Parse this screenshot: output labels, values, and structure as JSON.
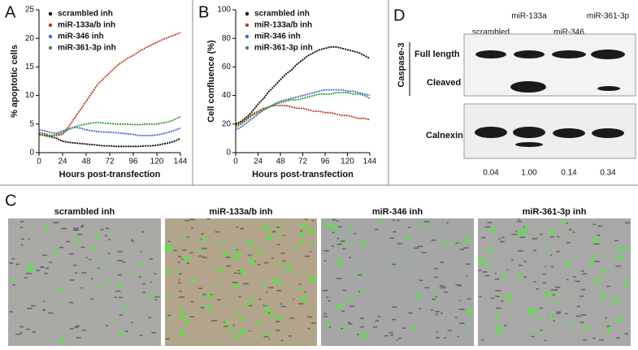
{
  "chart_data": [
    {
      "type": "line",
      "panel_label": "A",
      "ylabel": "% apoptotic cells",
      "xlabel": "Hours post-transfection",
      "x": [
        0,
        6,
        12,
        18,
        24,
        30,
        36,
        42,
        48,
        54,
        60,
        66,
        72,
        78,
        84,
        90,
        96,
        102,
        108,
        114,
        120,
        126,
        132,
        138,
        144
      ],
      "xlim": [
        0,
        144
      ],
      "xticks": [
        0,
        24,
        48,
        72,
        96,
        120,
        144
      ],
      "ylim": [
        0,
        25
      ],
      "yticks": [
        0,
        5,
        10,
        15,
        20,
        25
      ],
      "legend": "upper left",
      "series": [
        {
          "name": "scrambled inh",
          "color": "#000000",
          "values": [
            3.2,
            3.0,
            2.8,
            2.5,
            2.0,
            1.8,
            1.7,
            1.6,
            1.5,
            1.4,
            1.3,
            1.2,
            1.2,
            1.1,
            1.1,
            1.1,
            1.1,
            1.1,
            1.2,
            1.2,
            1.3,
            1.5,
            1.7,
            2.0,
            2.5
          ]
        },
        {
          "name": "miR-133a/b inh",
          "color": "#c8321e",
          "values": [
            3.5,
            3.3,
            3.0,
            3.0,
            3.2,
            4.5,
            6.0,
            7.5,
            9.0,
            10.5,
            12.0,
            13.0,
            14.0,
            15.0,
            15.8,
            16.5,
            17.0,
            17.7,
            18.3,
            18.8,
            19.3,
            19.8,
            20.2,
            20.6,
            21.0
          ]
        },
        {
          "name": "miR-346 inh",
          "color": "#4a5fd8",
          "values": [
            4.0,
            3.8,
            3.5,
            3.4,
            3.8,
            4.2,
            4.4,
            4.3,
            4.0,
            3.8,
            3.7,
            3.6,
            3.6,
            3.5,
            3.4,
            3.3,
            3.2,
            3.0,
            3.0,
            3.0,
            3.1,
            3.3,
            3.6,
            3.9,
            4.3
          ]
        },
        {
          "name": "miR-361-3p inh",
          "color": "#2e9e2e",
          "values": [
            3.0,
            3.2,
            3.0,
            3.2,
            3.5,
            4.0,
            4.5,
            4.8,
            5.0,
            5.2,
            5.3,
            5.2,
            5.1,
            5.0,
            5.0,
            5.0,
            4.9,
            4.9,
            5.0,
            5.0,
            5.0,
            5.2,
            5.4,
            5.8,
            6.3
          ]
        }
      ]
    },
    {
      "type": "line",
      "panel_label": "B",
      "ylabel": "Cell confluence (%)",
      "xlabel": "Hours post-transfection",
      "x": [
        0,
        6,
        12,
        18,
        24,
        30,
        36,
        42,
        48,
        54,
        60,
        66,
        72,
        78,
        84,
        90,
        96,
        102,
        108,
        114,
        120,
        126,
        132,
        138,
        144
      ],
      "xlim": [
        0,
        144
      ],
      "xticks": [
        0,
        24,
        48,
        72,
        96,
        120,
        144
      ],
      "ylim": [
        0,
        100
      ],
      "yticks": [
        0,
        20,
        40,
        60,
        80,
        100
      ],
      "legend": "upper left",
      "series": [
        {
          "name": "scrambled inh",
          "color": "#000000",
          "values": [
            20,
            22,
            25,
            29,
            34,
            38,
            43,
            47,
            51,
            55,
            58,
            62,
            65,
            68,
            70,
            72,
            73,
            74,
            74,
            73,
            72,
            71,
            70,
            68,
            66
          ]
        },
        {
          "name": "miR-133a/b inh",
          "color": "#c8321e",
          "values": [
            19,
            21,
            24,
            27,
            29,
            31,
            32,
            33,
            33,
            33,
            32,
            31,
            31,
            30,
            29,
            29,
            28,
            28,
            27,
            26,
            26,
            25,
            24,
            24,
            23
          ]
        },
        {
          "name": "miR-346 inh",
          "color": "#4a5fd8",
          "values": [
            16,
            18,
            21,
            24,
            27,
            30,
            32,
            34,
            36,
            37,
            38,
            39,
            40,
            41,
            42,
            43,
            44,
            44,
            44,
            44,
            43,
            43,
            42,
            41,
            40
          ]
        },
        {
          "name": "miR-361-3p inh",
          "color": "#2e9e2e",
          "values": [
            18,
            20,
            23,
            26,
            28,
            30,
            32,
            34,
            35,
            36,
            37,
            37,
            38,
            39,
            40,
            41,
            41,
            41,
            42,
            42,
            42,
            41,
            41,
            40,
            38
          ]
        }
      ]
    }
  ],
  "images": {
    "panel_label": "C",
    "titles": [
      "scrambled inh",
      "miR-133a/b inh",
      "miR-346 inh",
      "miR-361-3p inh"
    ]
  },
  "blot": {
    "panel_label": "D",
    "lanes": [
      "scrambled",
      "miR-133a",
      "miR-346",
      "miR-361-3p"
    ],
    "group_label": "Caspase-3",
    "bands": [
      "Full length",
      "Cleaved"
    ],
    "loading": "Calnexin",
    "quant": [
      "0.04",
      "1.00",
      "0.14",
      "0.34"
    ]
  }
}
